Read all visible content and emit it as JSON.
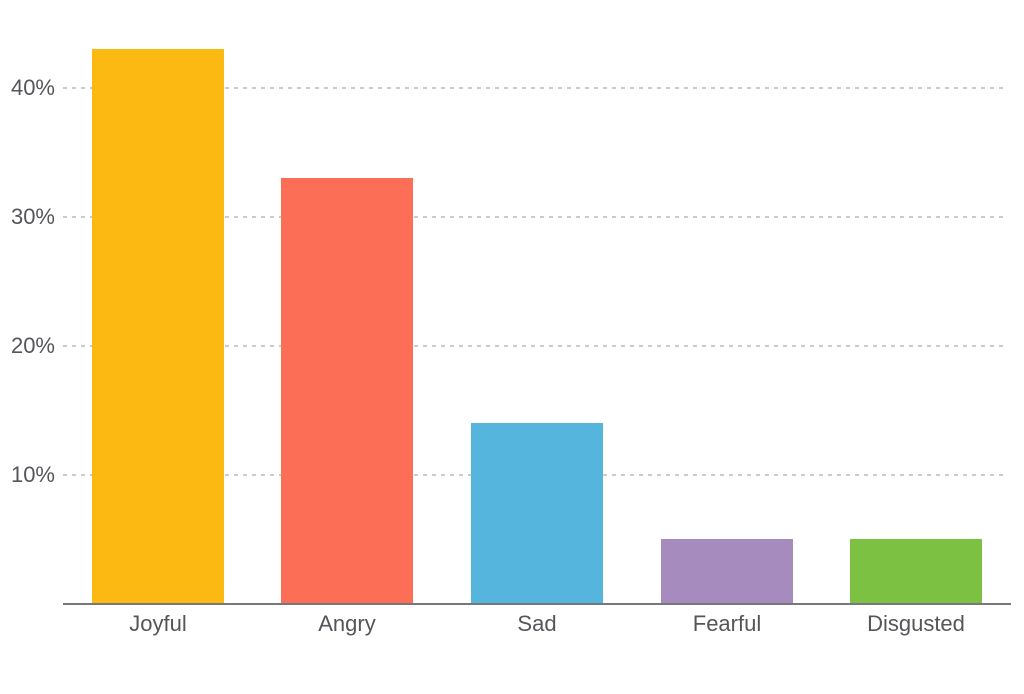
{
  "chart_data": {
    "type": "bar",
    "title": "",
    "xlabel": "",
    "ylabel": "",
    "categories": [
      "Joyful",
      "Angry",
      "Sad",
      "Fearful",
      "Disgusted"
    ],
    "values": [
      43,
      33,
      14,
      5,
      5
    ],
    "unit": "%",
    "bar_colors": [
      "#FCB912",
      "#FC6E55",
      "#55B5DC",
      "#A58BBE",
      "#7CC141"
    ],
    "y_ticks": [
      "10%",
      "20%",
      "30%",
      "40%"
    ],
    "y_tick_values": [
      10,
      20,
      30,
      40
    ],
    "ylim": [
      0,
      45
    ],
    "grid": "horizontal-dashed",
    "legend": "none"
  },
  "colors": {
    "background": "#FFFFFF",
    "axis_line": "#75787B",
    "gridline": "#CBCBCB",
    "tick_label": "#55565A"
  }
}
